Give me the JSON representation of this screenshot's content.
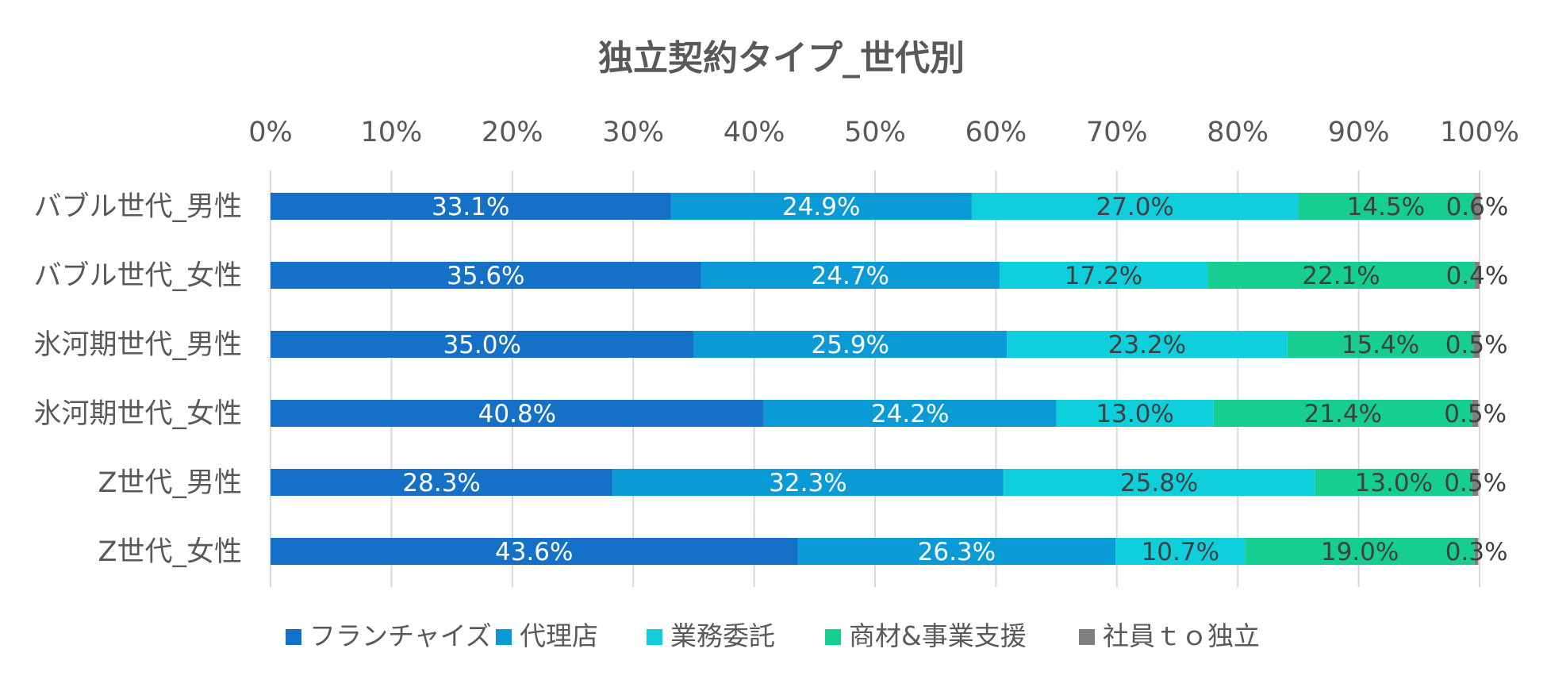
{
  "chart_data": {
    "type": "bar",
    "orientation": "horizontal",
    "stacked": "percent",
    "title": "独立契約タイプ_世代別",
    "xlim": [
      0,
      100
    ],
    "x_ticks": [
      "0%",
      "10%",
      "20%",
      "30%",
      "40%",
      "50%",
      "60%",
      "70%",
      "80%",
      "90%",
      "100%"
    ],
    "x_axis_position": "top",
    "legend_position": "bottom",
    "categories": [
      "バブル世代_男性",
      "バブル世代_女性",
      "氷河期世代_男性",
      "氷河期世代_女性",
      "Z世代_男性",
      "Z世代_女性"
    ],
    "series": [
      {
        "name": "フランチャイズ",
        "color": "#1570c8",
        "label_color": "#ffffff",
        "values": [
          33.1,
          35.6,
          35.0,
          40.8,
          28.3,
          43.6
        ],
        "labels": [
          "33.1%",
          "35.6%",
          "35.0%",
          "40.8%",
          "28.3%",
          "43.6%"
        ]
      },
      {
        "name": "代理店",
        "color": "#0a9ad6",
        "label_color": "#ffffff",
        "values": [
          24.9,
          24.7,
          25.9,
          24.2,
          32.3,
          26.3
        ],
        "labels": [
          "24.9%",
          "24.7%",
          "25.9%",
          "24.2%",
          "32.3%",
          "26.3%"
        ]
      },
      {
        "name": "業務委託",
        "color": "#0fcfdc",
        "label_color": "#404040",
        "values": [
          27.0,
          17.2,
          23.2,
          13.0,
          25.8,
          10.7
        ],
        "labels": [
          "27.0%",
          "17.2%",
          "23.2%",
          "13.0%",
          "25.8%",
          "10.7%"
        ]
      },
      {
        "name": "商材&事業支援",
        "color": "#16cd92",
        "label_color": "#404040",
        "values": [
          14.5,
          22.1,
          15.4,
          21.4,
          13.0,
          19.0
        ],
        "labels": [
          "14.5%",
          "22.1%",
          "15.4%",
          "21.4%",
          "13.0%",
          "19.0%"
        ]
      },
      {
        "name": "社員ｔｏ独立",
        "color": "#7f7f7f",
        "label_color": "#404040",
        "values": [
          0.6,
          0.4,
          0.5,
          0.5,
          0.5,
          0.3
        ],
        "labels": [
          "0.6%",
          "0.4%",
          "0.5%",
          "0.5%",
          "0.5%",
          "0.3%"
        ]
      }
    ]
  }
}
